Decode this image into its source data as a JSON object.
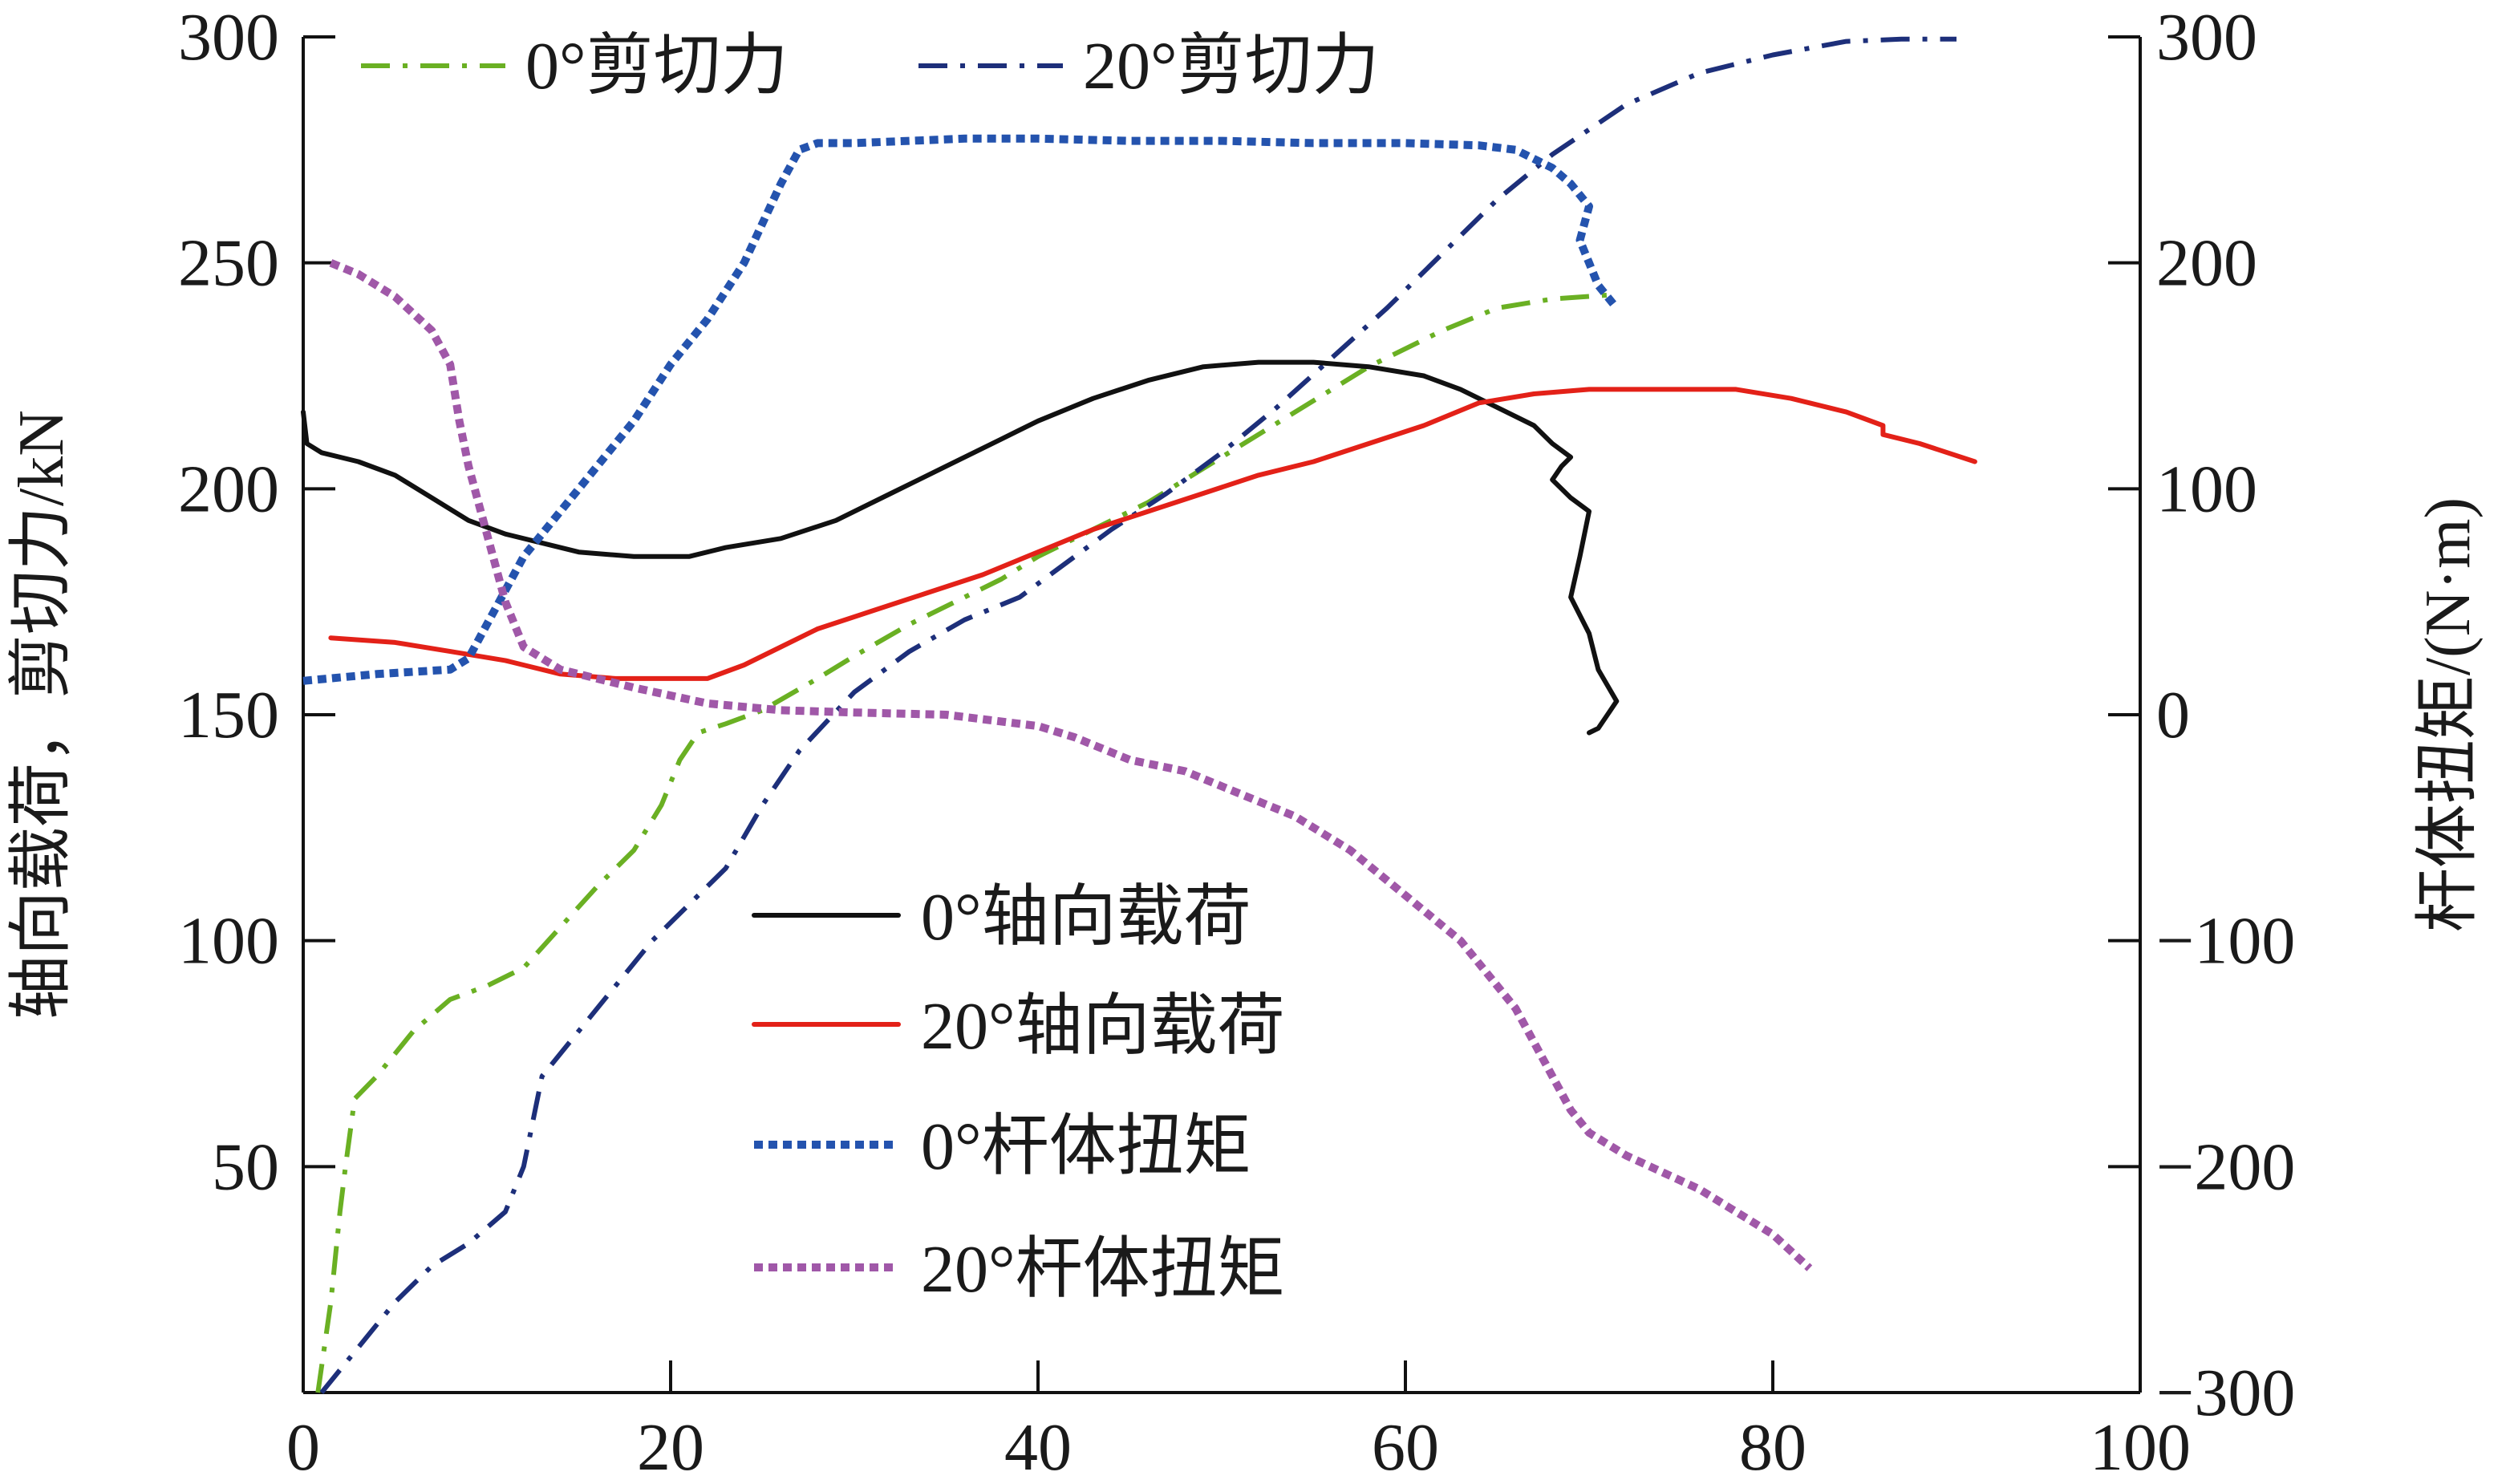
{
  "chart_data": {
    "type": "line",
    "title": "",
    "xlabel": "",
    "xlim": [
      0,
      100
    ],
    "xticks": [
      "0",
      "20",
      "40",
      "60",
      "80",
      "100"
    ],
    "y_left": {
      "label": "轴向载荷，剪切力/kN",
      "lim": [
        0,
        300
      ],
      "ticks": [
        "50",
        "100",
        "150",
        "200",
        "250",
        "300"
      ]
    },
    "y_right": {
      "label": "杆体扭矩/(N·m)",
      "lim": [
        -300,
        300
      ],
      "ticks": [
        "−300",
        "−200",
        "−100",
        "0",
        "100",
        "200",
        "300"
      ]
    },
    "grid": false,
    "legends": [
      {
        "placement": "top",
        "entries": [
          "0°剪切力",
          "20°剪切力"
        ]
      },
      {
        "placement": "center-bottom",
        "entries": [
          "0°轴向载荷",
          "20°轴向载荷",
          "0°杆体扭矩",
          "20°杆体扭矩"
        ]
      }
    ],
    "series": [
      {
        "name": "0°剪切力",
        "axis": "left",
        "color": "#6ab023",
        "style": "dashdot",
        "points": [
          [
            0.8,
            0
          ],
          [
            1.5,
            20
          ],
          [
            2,
            40
          ],
          [
            2.3,
            50
          ],
          [
            2.8,
            65
          ],
          [
            4,
            70
          ],
          [
            6,
            80
          ],
          [
            8,
            87
          ],
          [
            10,
            90
          ],
          [
            12,
            94
          ],
          [
            14,
            103
          ],
          [
            16,
            112
          ],
          [
            18,
            120
          ],
          [
            19.5,
            130
          ],
          [
            20.5,
            140
          ],
          [
            21.5,
            146
          ],
          [
            23,
            148
          ],
          [
            25,
            151
          ],
          [
            28,
            158
          ],
          [
            30,
            163
          ],
          [
            33,
            170
          ],
          [
            36,
            176
          ],
          [
            38,
            180
          ],
          [
            40,
            185
          ],
          [
            43,
            191
          ],
          [
            46,
            197
          ],
          [
            50,
            207
          ],
          [
            54,
            217
          ],
          [
            58,
            227
          ],
          [
            62,
            235
          ],
          [
            65,
            240
          ],
          [
            68,
            242
          ],
          [
            71.5,
            243
          ]
        ]
      },
      {
        "name": "20°剪切力",
        "axis": "left",
        "color": "#1d2f7a",
        "style": "dashdot",
        "points": [
          [
            1,
            0
          ],
          [
            3,
            10
          ],
          [
            5,
            20
          ],
          [
            7,
            28
          ],
          [
            9,
            33
          ],
          [
            11,
            40
          ],
          [
            12,
            50
          ],
          [
            13,
            70
          ],
          [
            15,
            80
          ],
          [
            17,
            90
          ],
          [
            19,
            100
          ],
          [
            21,
            108
          ],
          [
            23,
            116
          ],
          [
            25,
            130
          ],
          [
            27,
            142
          ],
          [
            30,
            155
          ],
          [
            33,
            164
          ],
          [
            36,
            171
          ],
          [
            39,
            176
          ],
          [
            41,
            182
          ],
          [
            44,
            191
          ],
          [
            47,
            199
          ],
          [
            50,
            208
          ],
          [
            53,
            218
          ],
          [
            56,
            229
          ],
          [
            59,
            240
          ],
          [
            62,
            252
          ],
          [
            65,
            264
          ],
          [
            68,
            274
          ],
          [
            72,
            285
          ],
          [
            76,
            292
          ],
          [
            80,
            296
          ],
          [
            84,
            299
          ],
          [
            87,
            299.5
          ],
          [
            90,
            299.5
          ]
        ]
      },
      {
        "name": "0°轴向载荷",
        "axis": "left",
        "color": "#111111",
        "style": "solid",
        "points": [
          [
            0,
            217
          ],
          [
            0.2,
            210
          ],
          [
            1,
            208
          ],
          [
            3,
            206
          ],
          [
            5,
            203
          ],
          [
            7,
            198
          ],
          [
            9,
            193
          ],
          [
            11,
            190
          ],
          [
            13,
            188
          ],
          [
            15,
            186
          ],
          [
            18,
            185
          ],
          [
            21,
            185
          ],
          [
            23,
            187
          ],
          [
            26,
            189
          ],
          [
            29,
            193
          ],
          [
            32,
            199
          ],
          [
            35,
            205
          ],
          [
            38,
            211
          ],
          [
            40,
            215
          ],
          [
            43,
            220
          ],
          [
            46,
            224
          ],
          [
            49,
            227
          ],
          [
            52,
            228
          ],
          [
            55,
            228
          ],
          [
            58,
            227
          ],
          [
            61,
            225
          ],
          [
            63,
            222
          ],
          [
            65,
            218
          ],
          [
            67,
            214
          ],
          [
            68,
            210
          ],
          [
            69,
            207
          ],
          [
            68.5,
            205
          ],
          [
            68,
            202
          ],
          [
            69,
            198
          ],
          [
            70,
            195
          ],
          [
            69.5,
            185
          ],
          [
            69,
            176
          ],
          [
            70,
            168
          ],
          [
            70.5,
            160
          ],
          [
            71.5,
            153
          ],
          [
            71,
            150
          ],
          [
            70.5,
            147
          ],
          [
            70,
            146
          ]
        ]
      },
      {
        "name": "20°轴向载荷",
        "axis": "left",
        "color": "#e32118",
        "style": "solid",
        "points": [
          [
            1.5,
            167
          ],
          [
            5,
            166
          ],
          [
            8,
            164
          ],
          [
            11,
            162
          ],
          [
            14,
            159
          ],
          [
            17,
            158
          ],
          [
            20,
            158
          ],
          [
            22,
            158
          ],
          [
            24,
            161
          ],
          [
            26,
            165
          ],
          [
            28,
            169
          ],
          [
            31,
            173
          ],
          [
            34,
            177
          ],
          [
            37,
            181
          ],
          [
            40,
            186
          ],
          [
            43,
            191
          ],
          [
            46,
            195
          ],
          [
            49,
            199
          ],
          [
            52,
            203
          ],
          [
            55,
            206
          ],
          [
            58,
            210
          ],
          [
            61,
            214
          ],
          [
            64,
            219
          ],
          [
            67,
            221
          ],
          [
            70,
            222
          ],
          [
            74,
            222
          ],
          [
            78,
            222
          ],
          [
            81,
            220
          ],
          [
            84,
            217
          ],
          [
            86,
            214
          ],
          [
            86,
            212
          ],
          [
            88,
            210
          ],
          [
            91,
            206
          ]
        ]
      },
      {
        "name": "0°杆体扭矩",
        "axis": "right",
        "color": "#2453ae",
        "style": "dotted",
        "points": [
          [
            0,
            15
          ],
          [
            4,
            18
          ],
          [
            8,
            20
          ],
          [
            9,
            25
          ],
          [
            10,
            40
          ],
          [
            11,
            55
          ],
          [
            12,
            70
          ],
          [
            14,
            90
          ],
          [
            16,
            110
          ],
          [
            18,
            130
          ],
          [
            20,
            155
          ],
          [
            22,
            175
          ],
          [
            24,
            200
          ],
          [
            26,
            235
          ],
          [
            27,
            250
          ],
          [
            28,
            253
          ],
          [
            30,
            253
          ],
          [
            33,
            254
          ],
          [
            36,
            255
          ],
          [
            40,
            255
          ],
          [
            45,
            254
          ],
          [
            50,
            254
          ],
          [
            55,
            253
          ],
          [
            60,
            253
          ],
          [
            64,
            252
          ],
          [
            66,
            250
          ],
          [
            68,
            242
          ],
          [
            69,
            235
          ],
          [
            70,
            225
          ],
          [
            69.5,
            210
          ],
          [
            70,
            200
          ],
          [
            70.5,
            190
          ],
          [
            71.5,
            180
          ]
        ]
      },
      {
        "name": "20°杆体扭矩",
        "axis": "right",
        "color": "#a058a8",
        "style": "dotted",
        "points": [
          [
            1.5,
            200
          ],
          [
            3,
            195
          ],
          [
            5,
            185
          ],
          [
            7,
            170
          ],
          [
            8,
            155
          ],
          [
            8.5,
            130
          ],
          [
            9,
            110
          ],
          [
            10,
            80
          ],
          [
            11,
            50
          ],
          [
            12,
            30
          ],
          [
            14,
            20
          ],
          [
            18,
            12
          ],
          [
            22,
            5
          ],
          [
            26,
            2
          ],
          [
            30,
            1
          ],
          [
            35,
            0
          ],
          [
            40,
            -5
          ],
          [
            42,
            -10
          ],
          [
            45,
            -20
          ],
          [
            48,
            -25
          ],
          [
            51,
            -35
          ],
          [
            54,
            -45
          ],
          [
            57,
            -60
          ],
          [
            60,
            -80
          ],
          [
            63,
            -100
          ],
          [
            66,
            -130
          ],
          [
            69,
            -175
          ],
          [
            70,
            -185
          ],
          [
            72,
            -195
          ],
          [
            76,
            -210
          ],
          [
            80,
            -230
          ],
          [
            82,
            -245
          ]
        ]
      }
    ]
  }
}
